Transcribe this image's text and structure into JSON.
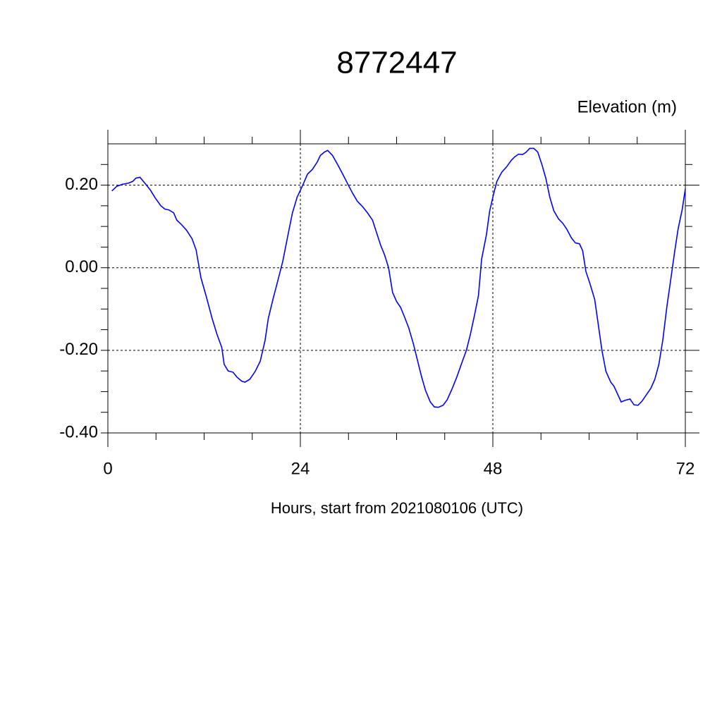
{
  "chart_data": {
    "type": "line",
    "title": "8772447",
    "y_label": "Elevation (m)",
    "x_label": "Hours, start from 2021080106 (UTC)",
    "xlim": [
      0,
      72
    ],
    "ylim": [
      -0.4,
      0.3
    ],
    "xticks": [
      0,
      24,
      48,
      72
    ],
    "yticks": [
      {
        "value": 0.2,
        "label": "0.20"
      },
      {
        "value": 0,
        "label": "0.00"
      },
      {
        "value": -0.2,
        "label": "-0.20"
      },
      {
        "value": -0.4,
        "label": "-0.40"
      }
    ],
    "x_minor_ticks": [
      6,
      12,
      18,
      30,
      36,
      42,
      54,
      60,
      66
    ],
    "y_minor_ticks": [
      0.25,
      0.15,
      0.1,
      0.05,
      -0.05,
      -0.1,
      -0.15,
      -0.25,
      -0.3,
      -0.35
    ],
    "grid": true,
    "x": [
      0.5,
      1.1,
      1.8,
      2.6,
      3.1,
      3.5,
      4.0,
      4.6,
      5.3,
      5.9,
      6.6,
      7.1,
      7.6,
      8.2,
      8.6,
      9.1,
      9.8,
      10.5,
      11.0,
      11.6,
      12.3,
      13.0,
      13.6,
      14.2,
      14.5,
      15.0,
      15.6,
      16.1,
      16.7,
      17.1,
      17.7,
      18.4,
      19.0,
      19.6,
      20.0,
      20.6,
      21.1,
      21.8,
      22.4,
      23.0,
      23.6,
      24.3,
      24.9,
      25.5,
      26.1,
      26.5,
      27.0,
      27.4,
      28.0,
      28.7,
      29.3,
      29.9,
      30.5,
      31.1,
      31.8,
      32.4,
      33.0,
      33.5,
      34.0,
      34.5,
      35.0,
      35.5,
      36.0,
      36.5,
      37.0,
      37.5,
      38.1,
      38.6,
      39.1,
      39.6,
      40.2,
      40.7,
      41.2,
      41.8,
      42.3,
      42.9,
      43.5,
      44.1,
      44.7,
      45.2,
      45.7,
      46.2,
      46.6,
      47.2,
      47.6,
      48.1,
      48.5,
      49.1,
      49.7,
      50.3,
      50.7,
      51.2,
      51.7,
      52.1,
      52.6,
      53.1,
      53.6,
      54.1,
      54.6,
      55.1,
      55.6,
      56.2,
      56.7,
      57.2,
      57.8,
      58.3,
      58.8,
      59.2,
      59.6,
      60.1,
      60.7,
      61.2,
      61.6,
      62.1,
      62.7,
      63.1,
      63.6,
      64.0,
      64.5,
      65.1,
      65.6,
      66.1,
      66.6,
      67.2,
      67.7,
      68.2,
      68.7,
      69.2,
      69.7,
      70.2,
      70.7,
      71.1,
      71.6,
      72.0
    ],
    "series": [
      {
        "color": "#0000ff",
        "values": [
          0.186,
          0.197,
          0.202,
          0.205,
          0.209,
          0.217,
          0.219,
          0.205,
          0.188,
          0.169,
          0.15,
          0.142,
          0.14,
          0.133,
          0.115,
          0.106,
          0.091,
          0.07,
          0.043,
          -0.024,
          -0.072,
          -0.123,
          -0.161,
          -0.193,
          -0.234,
          -0.25,
          -0.253,
          -0.265,
          -0.275,
          -0.277,
          -0.27,
          -0.25,
          -0.226,
          -0.176,
          -0.123,
          -0.075,
          -0.038,
          0.015,
          0.074,
          0.132,
          0.171,
          0.2,
          0.227,
          0.238,
          0.256,
          0.272,
          0.28,
          0.284,
          0.272,
          0.248,
          0.226,
          0.203,
          0.181,
          0.161,
          0.147,
          0.132,
          0.115,
          0.085,
          0.055,
          0.031,
          0.0,
          -0.06,
          -0.082,
          -0.096,
          -0.12,
          -0.145,
          -0.185,
          -0.224,
          -0.263,
          -0.297,
          -0.325,
          -0.337,
          -0.338,
          -0.333,
          -0.32,
          -0.294,
          -0.265,
          -0.232,
          -0.2,
          -0.161,
          -0.116,
          -0.068,
          0.021,
          0.08,
          0.137,
          0.179,
          0.209,
          0.231,
          0.244,
          0.26,
          0.268,
          0.275,
          0.274,
          0.279,
          0.289,
          0.289,
          0.28,
          0.251,
          0.217,
          0.171,
          0.138,
          0.118,
          0.108,
          0.094,
          0.072,
          0.06,
          0.058,
          0.041,
          -0.009,
          -0.038,
          -0.077,
          -0.145,
          -0.2,
          -0.251,
          -0.277,
          -0.287,
          -0.308,
          -0.325,
          -0.321,
          -0.318,
          -0.332,
          -0.333,
          -0.323,
          -0.306,
          -0.292,
          -0.27,
          -0.234,
          -0.174,
          -0.094,
          -0.026,
          0.043,
          0.094,
          0.14,
          0.191
        ]
      }
    ]
  }
}
